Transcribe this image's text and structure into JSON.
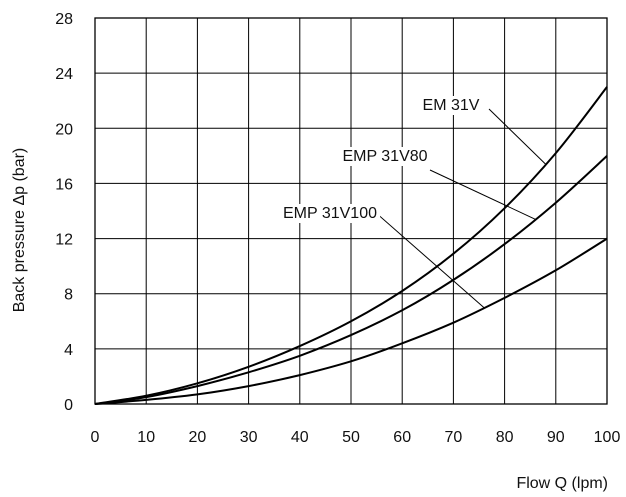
{
  "chart_data": {
    "type": "line",
    "title": "",
    "xlabel": "Flow Q (lpm)",
    "ylabel": "Back pressure Δp (bar)",
    "xlim": [
      0,
      100
    ],
    "ylim": [
      0,
      28
    ],
    "xticks": [
      0,
      10,
      20,
      30,
      40,
      50,
      60,
      70,
      80,
      90,
      100
    ],
    "yticks": [
      0,
      4,
      8,
      12,
      16,
      20,
      24,
      28
    ],
    "grid": true,
    "legend": "inline labels with leader lines",
    "x": [
      0,
      10,
      20,
      30,
      40,
      50,
      60,
      70,
      80,
      90,
      100
    ],
    "series": [
      {
        "name": "EM 31V",
        "values": [
          0,
          0.6,
          1.5,
          2.7,
          4.2,
          6.0,
          8.2,
          10.9,
          14.2,
          18.2,
          23.0
        ]
      },
      {
        "name": "EMP 31V80",
        "values": [
          0,
          0.5,
          1.3,
          2.3,
          3.5,
          5.0,
          6.8,
          9.0,
          11.6,
          14.6,
          18.0
        ]
      },
      {
        "name": "EMP 31V100",
        "values": [
          0,
          0.3,
          0.7,
          1.3,
          2.1,
          3.1,
          4.4,
          5.9,
          7.7,
          9.7,
          12.0
        ]
      }
    ],
    "line_color": "#000000",
    "grid_color": "#000000"
  }
}
